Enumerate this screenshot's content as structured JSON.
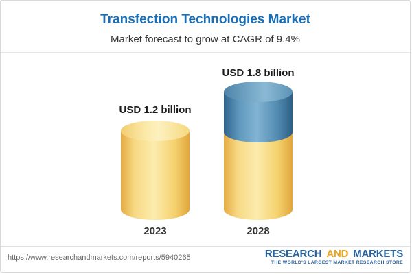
{
  "header": {
    "title": "Transfection Technologies Market",
    "subtitle": "Market forecast to grow at CAGR of 9.4%"
  },
  "chart_data": {
    "type": "bar",
    "title": "Transfection Technologies Market",
    "subtitle": "Market forecast to grow at CAGR of 9.4%",
    "categories": [
      "2023",
      "2028"
    ],
    "values": [
      1.2,
      1.8
    ],
    "unit": "USD billion",
    "cagr": "9.4%",
    "value_labels": [
      "USD 1.2 billion",
      "USD 1.8 billion"
    ],
    "segments_2028": {
      "base": 1.2,
      "growth": 0.6
    },
    "bar_style": "3d-cylinder",
    "legend": "none",
    "gridlines": false,
    "colors": {
      "base": "#f5d26e",
      "growth": "#4f88ae",
      "title": "#1a6eb5"
    }
  },
  "footer": {
    "url": "https://www.researchandmarkets.com/reports/5940265",
    "logo": {
      "research": "RESEARCH",
      "and": "AND",
      "markets": "MARKETS",
      "tagline": "THE WORLD'S LARGEST MARKET RESEARCH STORE"
    }
  }
}
